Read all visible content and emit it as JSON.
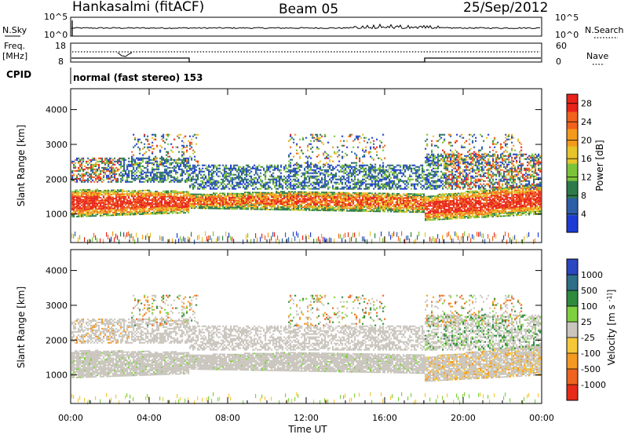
{
  "header": {
    "station": "Hankasalmi (fitACF)",
    "beam": "Beam 05",
    "date": "25/Sep/2012"
  },
  "top_panels": {
    "nsky_label": "N.Sky",
    "nsky_ticks": [
      "10^5",
      "10^0"
    ],
    "nsearch_label": "N.Search",
    "nsearch_ticks": [
      "10^5",
      "10^0"
    ],
    "freq_label_1": "Freq.",
    "freq_label_2": "[MHz]",
    "freq_ticks": [
      "18",
      "8"
    ],
    "nave_label": "Nave",
    "nave_ticks": [
      "60",
      "0"
    ],
    "cpid_label": "CPID",
    "cpid_text": "normal (fast stereo) 153"
  },
  "time_axis": {
    "label": "Time UT",
    "ticks": [
      "00:00",
      "04:00",
      "08:00",
      "12:00",
      "16:00",
      "20:00",
      "00:00"
    ]
  },
  "chart_data": [
    {
      "type": "heatmap",
      "ylabel": "Slant Range [km]",
      "y_ticks": [
        1000,
        2000,
        3000,
        4000
      ],
      "ylim": [
        180,
        4600
      ],
      "x_hours": [
        0,
        24
      ],
      "colorbar": {
        "label": "Power [dB]",
        "ticks": [
          4,
          8,
          12,
          16,
          20,
          24,
          28
        ],
        "range": [
          0,
          30
        ],
        "colors": [
          "#1f3bd6",
          "#2e5ea8",
          "#2f7a4a",
          "#7dc33a",
          "#e6c42a",
          "#f39a1c",
          "#f0621d",
          "#e8231a"
        ]
      }
    },
    {
      "type": "heatmap",
      "ylabel": "Slant Range [km]",
      "y_ticks": [
        1000,
        2000,
        3000,
        4000
      ],
      "ylim": [
        180,
        4600
      ],
      "x_hours": [
        0,
        24
      ],
      "colorbar": {
        "label": "Velocity [m s^-1]",
        "ticks": [
          1000,
          500,
          100,
          25,
          -25,
          -100,
          -500,
          -1000
        ],
        "colors": [
          "#2a46c0",
          "#2f6e88",
          "#2f8a3e",
          "#7fd040",
          "#c9c5bd",
          "#f5c83a",
          "#f49a22",
          "#ee6420",
          "#e82a1a"
        ]
      }
    }
  ]
}
